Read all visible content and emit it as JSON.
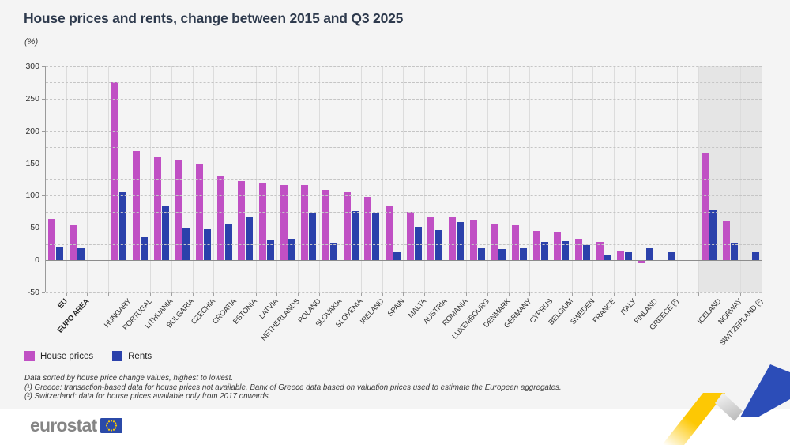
{
  "header": {
    "title": "House prices and rents, change between 2015 and Q3 2025",
    "unit": "(%)"
  },
  "legend": {
    "house_prices_label": "House prices",
    "rents_label": "Rents"
  },
  "footnotes": {
    "line1": "Data sorted by house price change values, highest to lowest.",
    "line2": "(¹) Greece: transaction-based data for house prices not available. Bank of Greece data based on valuation prices used to estimate the European aggregates.",
    "line3": "(²) Switzerland: data for house prices available only from 2017 onwards."
  },
  "footer": {
    "logo_text": "eurostat"
  },
  "colors": {
    "house_prices": "#c050c4",
    "rents": "#2b41ab",
    "efta_shade": "#e5e5e5",
    "background": "#f4f4f4",
    "eu_flag_blue": "#2b4aa8",
    "flag_star_yellow": "#ffcc00",
    "zigzag_yellow": "#fdc804",
    "zigzag_blue": "#2c4db8"
  },
  "chart_data": {
    "type": "bar",
    "title": "House prices and rents, change between 2015 and Q3 2025",
    "ylabel": "(%)",
    "ylim": [
      -50,
      300
    ],
    "yticks": [
      300,
      250,
      200,
      150,
      100,
      50,
      0,
      -50
    ],
    "grid_interval": 25,
    "grid": "dashed horizontal every 25, vertical separator between each country",
    "legend_position": "bottom-left",
    "series": [
      {
        "name": "House prices",
        "color": "#c050c4"
      },
      {
        "name": "Rents",
        "color": "#2b41ab"
      }
    ],
    "note": "null = no bar shown",
    "groups": [
      {
        "label": "EU",
        "section": "aggregates",
        "bold": true,
        "house_prices": 64,
        "rents": 21
      },
      {
        "label": "EURO AREA",
        "section": "aggregates",
        "bold": true,
        "house_prices": 54,
        "rents": 19
      },
      {
        "label": "HUNGARY",
        "section": "eu",
        "house_prices": 275,
        "rents": 106
      },
      {
        "label": "PORTUGAL",
        "section": "eu",
        "house_prices": 169,
        "rents": 36
      },
      {
        "label": "LITHUANIA",
        "section": "eu",
        "house_prices": 161,
        "rents": 84
      },
      {
        "label": "BULGARIA",
        "section": "eu",
        "house_prices": 156,
        "rents": 50
      },
      {
        "label": "CZECHIA",
        "section": "eu",
        "house_prices": 149,
        "rents": 48
      },
      {
        "label": "CROATIA",
        "section": "eu",
        "house_prices": 130,
        "rents": 56
      },
      {
        "label": "ESTONIA",
        "section": "eu",
        "house_prices": 122,
        "rents": 68
      },
      {
        "label": "LATVIA",
        "section": "eu",
        "house_prices": 120,
        "rents": 31
      },
      {
        "label": "NETHERLANDS",
        "section": "eu",
        "house_prices": 117,
        "rents": 32
      },
      {
        "label": "POLAND",
        "section": "eu",
        "house_prices": 117,
        "rents": 74
      },
      {
        "label": "SLOVAKIA",
        "section": "eu",
        "house_prices": 109,
        "rents": 27
      },
      {
        "label": "SLOVENIA",
        "section": "eu",
        "house_prices": 106,
        "rents": 76
      },
      {
        "label": "IRELAND",
        "section": "eu",
        "house_prices": 98,
        "rents": 72
      },
      {
        "label": "SPAIN",
        "section": "eu",
        "house_prices": 83,
        "rents": 13
      },
      {
        "label": "MALTA",
        "section": "eu",
        "house_prices": 75,
        "rents": 52
      },
      {
        "label": "AUSTRIA",
        "section": "eu",
        "house_prices": 68,
        "rents": 47
      },
      {
        "label": "ROMANIA",
        "section": "eu",
        "house_prices": 66,
        "rents": 59
      },
      {
        "label": "LUXEMBOURG",
        "section": "eu",
        "house_prices": 63,
        "rents": 18
      },
      {
        "label": "DENMARK",
        "section": "eu",
        "house_prices": 55,
        "rents": 17
      },
      {
        "label": "GERMANY",
        "section": "eu",
        "house_prices": 54,
        "rents": 18
      },
      {
        "label": "CYPRUS",
        "section": "eu",
        "house_prices": 46,
        "rents": 28
      },
      {
        "label": "BELGIUM",
        "section": "eu",
        "house_prices": 44,
        "rents": 29
      },
      {
        "label": "SWEDEN",
        "section": "eu",
        "house_prices": 33,
        "rents": 24
      },
      {
        "label": "FRANCE",
        "section": "eu",
        "house_prices": 28,
        "rents": 9
      },
      {
        "label": "ITALY",
        "section": "eu",
        "house_prices": 15,
        "rents": 12
      },
      {
        "label": "FINLAND",
        "section": "eu",
        "house_prices": -3,
        "rents": 19
      },
      {
        "label": "GREECE (¹)",
        "section": "eu",
        "house_prices": null,
        "rents": 13
      },
      {
        "label": "ICELAND",
        "section": "efta",
        "house_prices": 165,
        "rents": 77
      },
      {
        "label": "NORWAY",
        "section": "efta",
        "house_prices": 61,
        "rents": 27
      },
      {
        "label": "SWITZERLAND (²)",
        "section": "efta",
        "house_prices": null,
        "rents": 13
      }
    ]
  }
}
